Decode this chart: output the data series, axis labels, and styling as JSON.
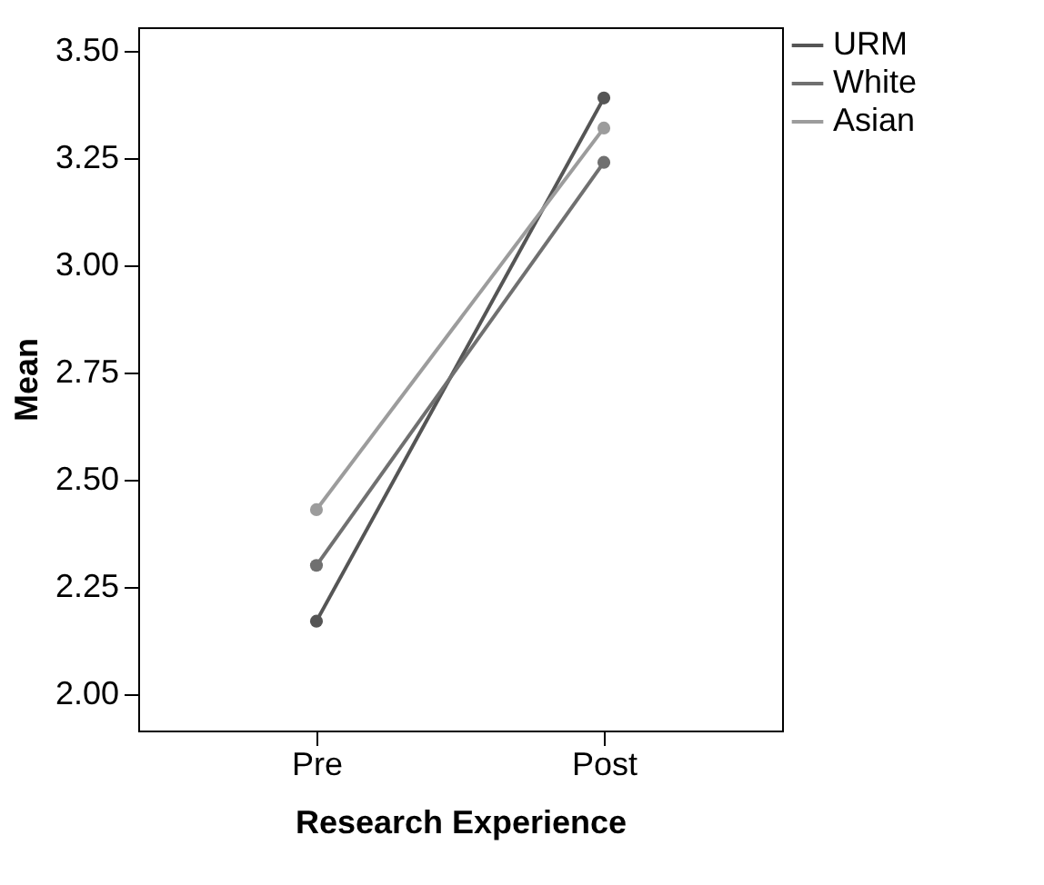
{
  "chart_data": {
    "type": "line",
    "xlabel": "Research Experience",
    "ylabel": "Mean",
    "categories": [
      "Pre",
      "Post"
    ],
    "series": [
      {
        "name": "URM",
        "color": "#555555",
        "values": [
          2.17,
          3.39
        ]
      },
      {
        "name": "White",
        "color": "#707070",
        "values": [
          2.3,
          3.24
        ]
      },
      {
        "name": "Asian",
        "color": "#9c9c9c",
        "values": [
          2.43,
          3.32
        ]
      }
    ],
    "ylim": [
      1.915,
      3.555
    ],
    "yticks": [
      {
        "value": 2,
        "label": "2.00"
      },
      {
        "value": 2.25,
        "label": "2.25"
      },
      {
        "value": 2.5,
        "label": "2.50"
      },
      {
        "value": 2.75,
        "label": "2.75"
      },
      {
        "value": 3,
        "label": "3.00"
      },
      {
        "value": 3.25,
        "label": "3.25"
      },
      {
        "value": 3.5,
        "label": "3.50"
      }
    ],
    "grid": false,
    "legend": "top right",
    "marker": "circle",
    "line_style": "solid"
  }
}
